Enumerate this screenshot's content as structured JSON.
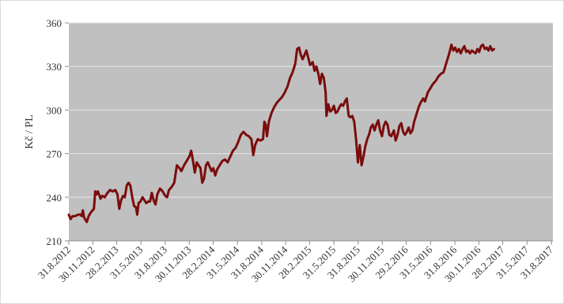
{
  "chart_data": {
    "type": "line",
    "title": "",
    "xlabel": "",
    "ylabel": "Kč / PL",
    "ylim": [
      210,
      360
    ],
    "yticks": [
      210,
      240,
      270,
      300,
      330,
      360
    ],
    "xlim": [
      "2012-08-31",
      "2017-09-06"
    ],
    "x_tick_labels": [
      "31.8.2012",
      "30.11.2012",
      "28.2.2013",
      "31.5.2013",
      "31.8.2013",
      "30.11.2013",
      "28.2.2014",
      "31.5.2014",
      "31.8.2014",
      "30.11.2014",
      "28.2.2015",
      "31.5.2015",
      "31.8.2015",
      "30.11.2015",
      "29.2.2016",
      "31.5.2016",
      "31.8.2016",
      "30.11.2016",
      "28.2.2017",
      "31.5.2017",
      "31.8.2017"
    ],
    "x_tick_dates": [
      "2012-08-31",
      "2012-11-30",
      "2013-02-28",
      "2013-05-31",
      "2013-08-31",
      "2013-11-30",
      "2014-02-28",
      "2014-05-31",
      "2014-08-31",
      "2014-11-30",
      "2015-02-28",
      "2015-05-31",
      "2015-08-31",
      "2015-11-30",
      "2016-02-29",
      "2016-05-31",
      "2016-08-31",
      "2016-11-30",
      "2017-02-28",
      "2017-05-31",
      "2017-08-31"
    ],
    "grid": true,
    "legend": "none",
    "colors": {
      "line": "#7b0c0c",
      "plot_background": "#c0c0c0",
      "grid": "#e6e6e6"
    },
    "series": [
      {
        "name": "",
        "points": [
          [
            "2012-08-31",
            228
          ],
          [
            "2012-09-07",
            225
          ],
          [
            "2012-09-14",
            227
          ],
          [
            "2012-09-24",
            227
          ],
          [
            "2012-10-04",
            228
          ],
          [
            "2012-10-14",
            228
          ],
          [
            "2012-10-19",
            227
          ],
          [
            "2012-10-23",
            231
          ],
          [
            "2012-10-28",
            226
          ],
          [
            "2012-11-07",
            223
          ],
          [
            "2012-11-14",
            227
          ],
          [
            "2012-11-24",
            230
          ],
          [
            "2012-12-04",
            232
          ],
          [
            "2012-12-09",
            244
          ],
          [
            "2012-12-14",
            242
          ],
          [
            "2012-12-19",
            244
          ],
          [
            "2012-12-29",
            239
          ],
          [
            "2013-01-04",
            241
          ],
          [
            "2013-01-14",
            240
          ],
          [
            "2013-01-24",
            243
          ],
          [
            "2013-02-03",
            245
          ],
          [
            "2013-02-13",
            244
          ],
          [
            "2013-02-23",
            245
          ],
          [
            "2013-03-03",
            242
          ],
          [
            "2013-03-10",
            232
          ],
          [
            "2013-03-17",
            238
          ],
          [
            "2013-03-24",
            241
          ],
          [
            "2013-03-31",
            240
          ],
          [
            "2013-04-07",
            248
          ],
          [
            "2013-04-14",
            250
          ],
          [
            "2013-04-21",
            248
          ],
          [
            "2013-04-28",
            240
          ],
          [
            "2013-05-05",
            234
          ],
          [
            "2013-05-12",
            233
          ],
          [
            "2013-05-17",
            228
          ],
          [
            "2013-05-22",
            236
          ],
          [
            "2013-05-29",
            237
          ],
          [
            "2013-06-06",
            240
          ],
          [
            "2013-06-13",
            238
          ],
          [
            "2013-06-20",
            236
          ],
          [
            "2013-06-27",
            237
          ],
          [
            "2013-07-04",
            237
          ],
          [
            "2013-07-11",
            243
          ],
          [
            "2013-07-18",
            238
          ],
          [
            "2013-07-25",
            235
          ],
          [
            "2013-08-01",
            242
          ],
          [
            "2013-08-11",
            246
          ],
          [
            "2013-08-21",
            244
          ],
          [
            "2013-08-31",
            241
          ],
          [
            "2013-09-07",
            240
          ],
          [
            "2013-09-14",
            245
          ],
          [
            "2013-09-24",
            247
          ],
          [
            "2013-10-04",
            250
          ],
          [
            "2013-10-14",
            262
          ],
          [
            "2013-10-24",
            260
          ],
          [
            "2013-10-31",
            258
          ],
          [
            "2013-11-10",
            262
          ],
          [
            "2013-11-20",
            265
          ],
          [
            "2013-11-30",
            268
          ],
          [
            "2013-12-07",
            272
          ],
          [
            "2013-12-14",
            265
          ],
          [
            "2013-12-21",
            257
          ],
          [
            "2013-12-28",
            264
          ],
          [
            "2014-01-04",
            262
          ],
          [
            "2014-01-11",
            260
          ],
          [
            "2014-01-18",
            250
          ],
          [
            "2014-01-25",
            253
          ],
          [
            "2014-02-01",
            262
          ],
          [
            "2014-02-08",
            264
          ],
          [
            "2014-02-15",
            261
          ],
          [
            "2014-02-22",
            258
          ],
          [
            "2014-03-01",
            260
          ],
          [
            "2014-03-08",
            255
          ],
          [
            "2014-03-15",
            259
          ],
          [
            "2014-03-25",
            262
          ],
          [
            "2014-04-04",
            265
          ],
          [
            "2014-04-14",
            266
          ],
          [
            "2014-04-24",
            264
          ],
          [
            "2014-05-04",
            268
          ],
          [
            "2014-05-14",
            272
          ],
          [
            "2014-05-24",
            274
          ],
          [
            "2014-06-03",
            278
          ],
          [
            "2014-06-13",
            283
          ],
          [
            "2014-06-23",
            285
          ],
          [
            "2014-07-03",
            283
          ],
          [
            "2014-07-13",
            282
          ],
          [
            "2014-07-23",
            280
          ],
          [
            "2014-07-30",
            269
          ],
          [
            "2014-08-06",
            276
          ],
          [
            "2014-08-16",
            280
          ],
          [
            "2014-08-26",
            279
          ],
          [
            "2014-09-05",
            280
          ],
          [
            "2014-09-10",
            292
          ],
          [
            "2014-09-15",
            290
          ],
          [
            "2014-09-20",
            282
          ],
          [
            "2014-09-27",
            292
          ],
          [
            "2014-10-07",
            298
          ],
          [
            "2014-10-17",
            302
          ],
          [
            "2014-10-27",
            305
          ],
          [
            "2014-11-06",
            307
          ],
          [
            "2014-11-16",
            309
          ],
          [
            "2014-11-26",
            312
          ],
          [
            "2014-12-06",
            316
          ],
          [
            "2014-12-16",
            322
          ],
          [
            "2014-12-26",
            326
          ],
          [
            "2015-01-05",
            332
          ],
          [
            "2015-01-12",
            342
          ],
          [
            "2015-01-19",
            343
          ],
          [
            "2015-01-26",
            338
          ],
          [
            "2015-02-02",
            335
          ],
          [
            "2015-02-09",
            338
          ],
          [
            "2015-02-16",
            341
          ],
          [
            "2015-02-23",
            336
          ],
          [
            "2015-03-02",
            331
          ],
          [
            "2015-03-12",
            333
          ],
          [
            "2015-03-19",
            327
          ],
          [
            "2015-03-26",
            330
          ],
          [
            "2015-04-02",
            325
          ],
          [
            "2015-04-09",
            318
          ],
          [
            "2015-04-16",
            325
          ],
          [
            "2015-04-23",
            322
          ],
          [
            "2015-04-30",
            312
          ],
          [
            "2015-05-03",
            296
          ],
          [
            "2015-05-10",
            304
          ],
          [
            "2015-05-17",
            299
          ],
          [
            "2015-05-24",
            300
          ],
          [
            "2015-05-31",
            303
          ],
          [
            "2015-06-07",
            298
          ],
          [
            "2015-06-14",
            299
          ],
          [
            "2015-06-21",
            302
          ],
          [
            "2015-06-28",
            304
          ],
          [
            "2015-07-05",
            303
          ],
          [
            "2015-07-12",
            306
          ],
          [
            "2015-07-19",
            308
          ],
          [
            "2015-07-26",
            296
          ],
          [
            "2015-08-02",
            295
          ],
          [
            "2015-08-09",
            296
          ],
          [
            "2015-08-16",
            292
          ],
          [
            "2015-08-23",
            280
          ],
          [
            "2015-08-30",
            264
          ],
          [
            "2015-09-06",
            276
          ],
          [
            "2015-09-13",
            262
          ],
          [
            "2015-09-20",
            268
          ],
          [
            "2015-09-27",
            275
          ],
          [
            "2015-10-04",
            280
          ],
          [
            "2015-10-11",
            283
          ],
          [
            "2015-10-18",
            288
          ],
          [
            "2015-10-25",
            290
          ],
          [
            "2015-11-01",
            286
          ],
          [
            "2015-11-08",
            290
          ],
          [
            "2015-11-15",
            293
          ],
          [
            "2015-11-22",
            286
          ],
          [
            "2015-11-29",
            282
          ],
          [
            "2015-12-06",
            289
          ],
          [
            "2015-12-13",
            292
          ],
          [
            "2015-12-20",
            290
          ],
          [
            "2015-12-27",
            283
          ],
          [
            "2016-01-03",
            282
          ],
          [
            "2016-01-13",
            286
          ],
          [
            "2016-01-20",
            279
          ],
          [
            "2016-01-27",
            283
          ],
          [
            "2016-02-03",
            289
          ],
          [
            "2016-02-10",
            291
          ],
          [
            "2016-02-17",
            285
          ],
          [
            "2016-02-24",
            283
          ],
          [
            "2016-03-02",
            285
          ],
          [
            "2016-03-09",
            288
          ],
          [
            "2016-03-16",
            284
          ],
          [
            "2016-03-23",
            286
          ],
          [
            "2016-03-30",
            292
          ],
          [
            "2016-04-09",
            298
          ],
          [
            "2016-04-16",
            302
          ],
          [
            "2016-04-23",
            305
          ],
          [
            "2016-05-03",
            308
          ],
          [
            "2016-05-10",
            306
          ],
          [
            "2016-05-20",
            312
          ],
          [
            "2016-05-30",
            315
          ],
          [
            "2016-06-09",
            318
          ],
          [
            "2016-06-19",
            320
          ],
          [
            "2016-06-29",
            323
          ],
          [
            "2016-07-09",
            325
          ],
          [
            "2016-07-19",
            326
          ],
          [
            "2016-07-29",
            332
          ],
          [
            "2016-08-08",
            338
          ],
          [
            "2016-08-18",
            345
          ],
          [
            "2016-08-25",
            341
          ],
          [
            "2016-09-01",
            343
          ],
          [
            "2016-09-08",
            340
          ],
          [
            "2016-09-15",
            342
          ],
          [
            "2016-09-22",
            339
          ],
          [
            "2016-09-29",
            342
          ],
          [
            "2016-10-06",
            344
          ],
          [
            "2016-10-13",
            340
          ],
          [
            "2016-10-20",
            341
          ],
          [
            "2016-10-27",
            339
          ],
          [
            "2016-11-03",
            341
          ],
          [
            "2016-11-10",
            340
          ],
          [
            "2016-11-17",
            339
          ],
          [
            "2016-11-24",
            342
          ],
          [
            "2016-12-01",
            340
          ],
          [
            "2016-12-08",
            344
          ],
          [
            "2016-12-15",
            345
          ],
          [
            "2016-12-22",
            342
          ],
          [
            "2016-12-29",
            343
          ],
          [
            "2017-01-05",
            341
          ],
          [
            "2017-01-12",
            344
          ],
          [
            "2017-01-19",
            341
          ],
          [
            "2017-01-26",
            342
          ]
        ]
      }
    ]
  }
}
